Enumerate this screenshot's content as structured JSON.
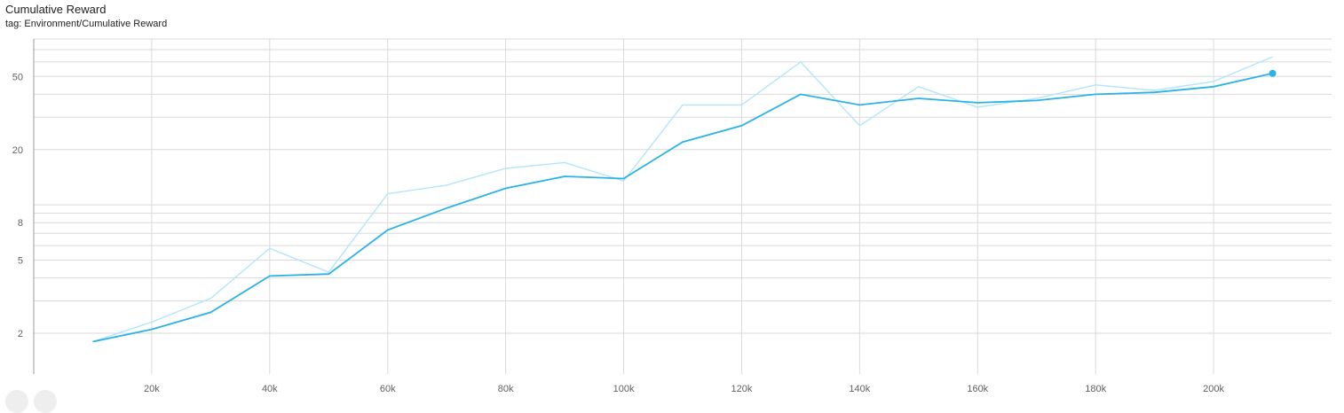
{
  "title": "Cumulative Reward",
  "tag": "tag: Environment/Cumulative Reward",
  "colors": {
    "smoothed": "#2bb2e6",
    "raw": "#b3e5fc",
    "grid": "#dadada"
  },
  "chart_data": {
    "type": "line",
    "title": "Cumulative Reward",
    "xlabel": "",
    "ylabel": "",
    "yscale": "log",
    "xlim": [
      0,
      220000
    ],
    "ylim": [
      1.2,
      80
    ],
    "grid": true,
    "x_ticks": [
      20000,
      40000,
      60000,
      80000,
      100000,
      120000,
      140000,
      160000,
      180000,
      200000
    ],
    "x_tick_labels": [
      "20k",
      "40k",
      "60k",
      "80k",
      "100k",
      "120k",
      "140k",
      "160k",
      "180k",
      "200k"
    ],
    "y_ticks": [
      2,
      5,
      8,
      20,
      50
    ],
    "y_tick_labels": [
      "2",
      "5",
      "8",
      "20",
      "50"
    ],
    "x": [
      10000,
      20000,
      30000,
      40000,
      50000,
      60000,
      70000,
      80000,
      90000,
      100000,
      110000,
      120000,
      130000,
      140000,
      150000,
      160000,
      170000,
      180000,
      190000,
      200000,
      210000
    ],
    "series": [
      {
        "values": [
          1.8,
          2.3,
          3.1,
          5.8,
          4.3,
          11.5,
          12.8,
          15.8,
          17.0,
          13.5,
          35,
          35,
          60,
          27,
          44,
          34,
          38,
          45,
          42,
          47,
          64
        ]
      },
      {
        "values": [
          1.8,
          2.1,
          2.6,
          4.1,
          4.2,
          7.3,
          9.6,
          12.3,
          14.3,
          13.9,
          22,
          27,
          40,
          35,
          38,
          36,
          37,
          40,
          41,
          44,
          52
        ]
      }
    ]
  }
}
